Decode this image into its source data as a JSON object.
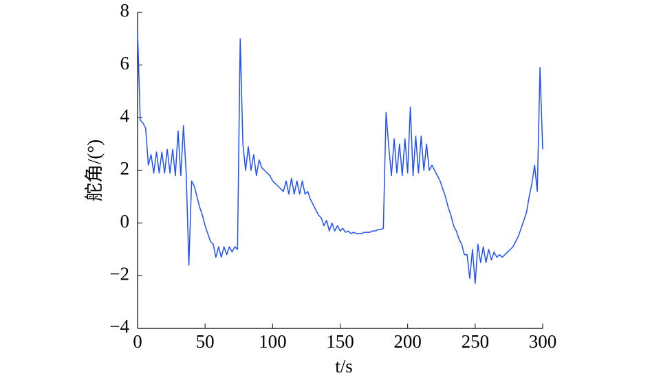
{
  "chart_data": {
    "type": "line",
    "x_label": "t/s",
    "y_label": "舵角/(°)",
    "x": [
      0,
      2,
      4,
      6,
      8,
      10,
      12,
      14,
      16,
      18,
      20,
      22,
      24,
      26,
      28,
      30,
      32,
      34,
      36,
      38,
      40,
      42,
      44,
      46,
      48,
      50,
      52,
      54,
      56,
      58,
      60,
      62,
      64,
      66,
      68,
      70,
      72,
      74,
      76,
      78,
      80,
      82,
      84,
      86,
      88,
      90,
      92,
      94,
      96,
      98,
      100,
      102,
      104,
      106,
      108,
      110,
      112,
      114,
      116,
      118,
      120,
      122,
      124,
      126,
      128,
      130,
      132,
      134,
      136,
      138,
      140,
      142,
      144,
      146,
      148,
      150,
      152,
      154,
      156,
      158,
      160,
      162,
      164,
      166,
      168,
      170,
      172,
      174,
      176,
      178,
      180,
      182,
      184,
      186,
      188,
      190,
      192,
      194,
      196,
      198,
      200,
      202,
      204,
      206,
      208,
      210,
      212,
      214,
      216,
      218,
      220,
      222,
      224,
      226,
      228,
      230,
      232,
      234,
      236,
      238,
      240,
      242,
      244,
      246,
      248,
      250,
      252,
      254,
      256,
      258,
      260,
      262,
      264,
      266,
      268,
      270,
      272,
      274,
      276,
      278,
      280,
      282,
      284,
      286,
      288,
      290,
      292,
      294,
      296,
      298,
      300
    ],
    "series": [
      {
        "color": "#1f4fff",
        "values": [
          7.3,
          3.9,
          3.8,
          3.6,
          2.2,
          2.6,
          1.9,
          2.7,
          1.9,
          2.7,
          1.9,
          2.8,
          1.9,
          2.8,
          1.8,
          3.5,
          1.8,
          3.7,
          1.9,
          -1.6,
          1.6,
          1.4,
          1.0,
          0.6,
          0.3,
          -0.1,
          -0.4,
          -0.7,
          -0.8,
          -1.3,
          -0.9,
          -1.3,
          -0.9,
          -1.2,
          -0.9,
          -1.1,
          -0.9,
          -1.0,
          7.0,
          3.0,
          2.0,
          2.9,
          2.0,
          2.6,
          1.8,
          2.4,
          2.1,
          2.0,
          1.9,
          1.8,
          1.6,
          1.5,
          1.4,
          1.3,
          1.2,
          1.6,
          1.1,
          1.7,
          1.1,
          1.6,
          1.1,
          1.6,
          1.1,
          1.2,
          0.9,
          0.7,
          0.5,
          0.3,
          0.2,
          -0.1,
          0.1,
          -0.3,
          0.0,
          -0.3,
          -0.1,
          -0.3,
          -0.2,
          -0.35,
          -0.3,
          -0.4,
          -0.35,
          -0.4,
          -0.4,
          -0.4,
          -0.35,
          -0.35,
          -0.35,
          -0.3,
          -0.3,
          -0.25,
          -0.25,
          -0.2,
          4.2,
          2.9,
          1.8,
          3.2,
          1.9,
          3.0,
          1.8,
          3.2,
          1.9,
          4.4,
          1.8,
          3.3,
          1.9,
          3.3,
          2.0,
          3.0,
          2.0,
          2.2,
          2.0,
          1.8,
          1.6,
          1.3,
          1.0,
          0.6,
          0.3,
          -0.1,
          -0.3,
          -0.6,
          -0.8,
          -1.2,
          -1.2,
          -2.1,
          -1.0,
          -2.3,
          -0.8,
          -1.5,
          -0.9,
          -1.5,
          -1.0,
          -1.4,
          -1.1,
          -1.3,
          -1.2,
          -1.3,
          -1.2,
          -1.1,
          -1.0,
          -0.9,
          -0.7,
          -0.5,
          -0.2,
          0.1,
          0.4,
          1.0,
          1.5,
          2.2,
          1.2,
          5.9,
          2.8
        ]
      }
    ],
    "xlim": [
      0,
      300
    ],
    "xticks": [
      0,
      50,
      100,
      150,
      200,
      250,
      300
    ],
    "ylim": [
      -4,
      8
    ],
    "yticks": [
      {
        "value": -4,
        "label": "−4"
      },
      {
        "value": -2,
        "label": "−2"
      },
      0,
      2,
      4,
      6,
      8
    ]
  }
}
